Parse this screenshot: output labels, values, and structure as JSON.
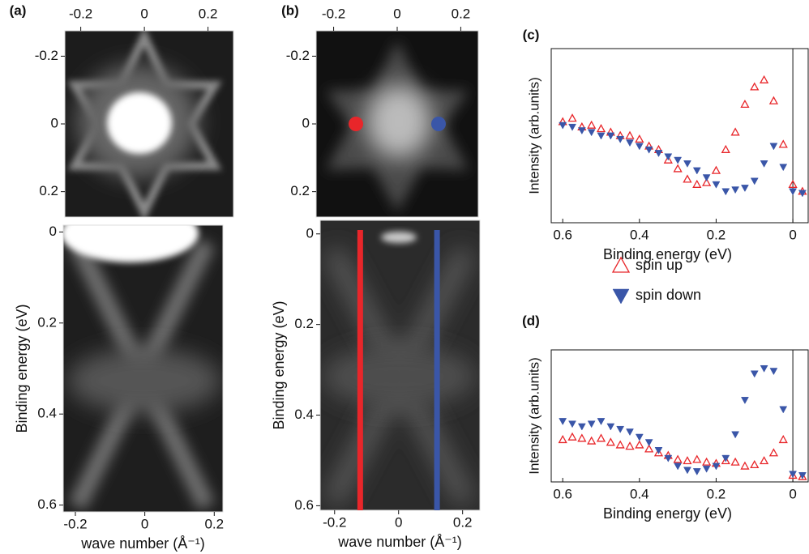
{
  "chart_data": [
    {
      "type": "image",
      "label": "(a)",
      "xlim": [
        -0.25,
        0.28
      ],
      "xticks": [
        -0.2,
        0,
        0.2
      ],
      "ylim": [
        -0.275,
        0.275
      ],
      "yticks": [
        -0.2,
        0,
        0.2
      ]
    },
    {
      "type": "image",
      "xlabel": "wave number (Å⁻¹)",
      "ylabel": "Binding energy (eV)",
      "xlim": [
        -0.235,
        0.225
      ],
      "xticks": [
        -0.2,
        0,
        0.2
      ],
      "ylim": [
        -0.015,
        0.615
      ],
      "yticks": [
        0,
        0.2,
        0.4,
        0.6
      ]
    },
    {
      "type": "image",
      "label": "(b)",
      "xlim": [
        -0.255,
        0.255
      ],
      "xticks": [
        -0.2,
        0,
        0.2
      ],
      "ylim": [
        -0.275,
        0.275
      ],
      "yticks": [
        -0.2,
        0,
        0.2
      ],
      "markers": [
        {
          "x": -0.13,
          "y": 0,
          "color": "#e8262a"
        },
        {
          "x": 0.13,
          "y": 0,
          "color": "#3a56a8"
        }
      ]
    },
    {
      "type": "image",
      "xlabel": "wave number (Å⁻¹)",
      "ylabel": "Binding energy (eV)",
      "xlim": [
        -0.245,
        0.254
      ],
      "xticks": [
        -0.2,
        0,
        0.2
      ],
      "ylim": [
        -0.03,
        0.61
      ],
      "yticks": [
        0,
        0.2,
        0.4,
        0.6
      ],
      "cuts": [
        {
          "x": -0.12,
          "color": "#e8262a"
        },
        {
          "x": 0.12,
          "color": "#3a56a8"
        }
      ]
    },
    {
      "type": "scatter",
      "label": "(c)",
      "xlabel": "Binding energy  (eV)",
      "ylabel": "Intensity (arb.units)",
      "xlim": [
        0.63,
        -0.04
      ],
      "xticks": [
        0.6,
        0.4,
        0.2,
        0
      ],
      "ylim": [
        0,
        1
      ],
      "x": [
        0.6,
        0.575,
        0.55,
        0.525,
        0.5,
        0.475,
        0.45,
        0.425,
        0.4,
        0.375,
        0.35,
        0.325,
        0.3,
        0.275,
        0.25,
        0.225,
        0.2,
        0.175,
        0.15,
        0.125,
        0.1,
        0.075,
        0.05,
        0.025,
        0,
        -0.025
      ],
      "series": [
        {
          "name": "spin up",
          "color": "#e8262a",
          "marker": "triangle-up-open",
          "values": [
            0.58,
            0.6,
            0.55,
            0.56,
            0.54,
            0.52,
            0.5,
            0.5,
            0.48,
            0.44,
            0.42,
            0.36,
            0.31,
            0.25,
            0.22,
            0.23,
            0.3,
            0.42,
            0.52,
            0.68,
            0.78,
            0.82,
            0.7,
            0.45,
            0.22,
            0.18
          ]
        },
        {
          "name": "spin down",
          "color": "#3a56a8",
          "marker": "triangle-down",
          "values": [
            0.56,
            0.55,
            0.53,
            0.52,
            0.5,
            0.5,
            0.48,
            0.46,
            0.44,
            0.42,
            0.4,
            0.38,
            0.36,
            0.34,
            0.3,
            0.26,
            0.22,
            0.18,
            0.19,
            0.2,
            0.24,
            0.34,
            0.44,
            0.32,
            0.18,
            0.17
          ]
        }
      ]
    },
    {
      "type": "scatter",
      "label": "(d)",
      "xlabel": "Binding energy  (eV)",
      "ylabel": "Intensity (arb.units)",
      "xlim": [
        0.63,
        -0.04
      ],
      "xticks": [
        0.6,
        0.4,
        0.2,
        0
      ],
      "ylim": [
        0,
        1
      ],
      "x": [
        0.6,
        0.575,
        0.55,
        0.525,
        0.5,
        0.475,
        0.45,
        0.425,
        0.4,
        0.375,
        0.35,
        0.325,
        0.3,
        0.275,
        0.25,
        0.225,
        0.2,
        0.175,
        0.15,
        0.125,
        0.1,
        0.075,
        0.05,
        0.025,
        0,
        -0.025
      ],
      "series": [
        {
          "color": "#e8262a",
          "marker": "triangle-up-open",
          "values": [
            0.32,
            0.34,
            0.33,
            0.31,
            0.33,
            0.3,
            0.28,
            0.27,
            0.28,
            0.25,
            0.22,
            0.2,
            0.17,
            0.16,
            0.17,
            0.15,
            0.14,
            0.16,
            0.15,
            0.12,
            0.13,
            0.16,
            0.22,
            0.32,
            0.05,
            0.04
          ]
        },
        {
          "color": "#3a56a8",
          "marker": "triangle-down",
          "values": [
            0.46,
            0.44,
            0.42,
            0.44,
            0.46,
            0.42,
            0.4,
            0.38,
            0.34,
            0.3,
            0.24,
            0.18,
            0.12,
            0.09,
            0.08,
            0.1,
            0.12,
            0.18,
            0.36,
            0.62,
            0.82,
            0.86,
            0.84,
            0.55,
            0.06,
            0.05
          ]
        }
      ]
    }
  ]
}
